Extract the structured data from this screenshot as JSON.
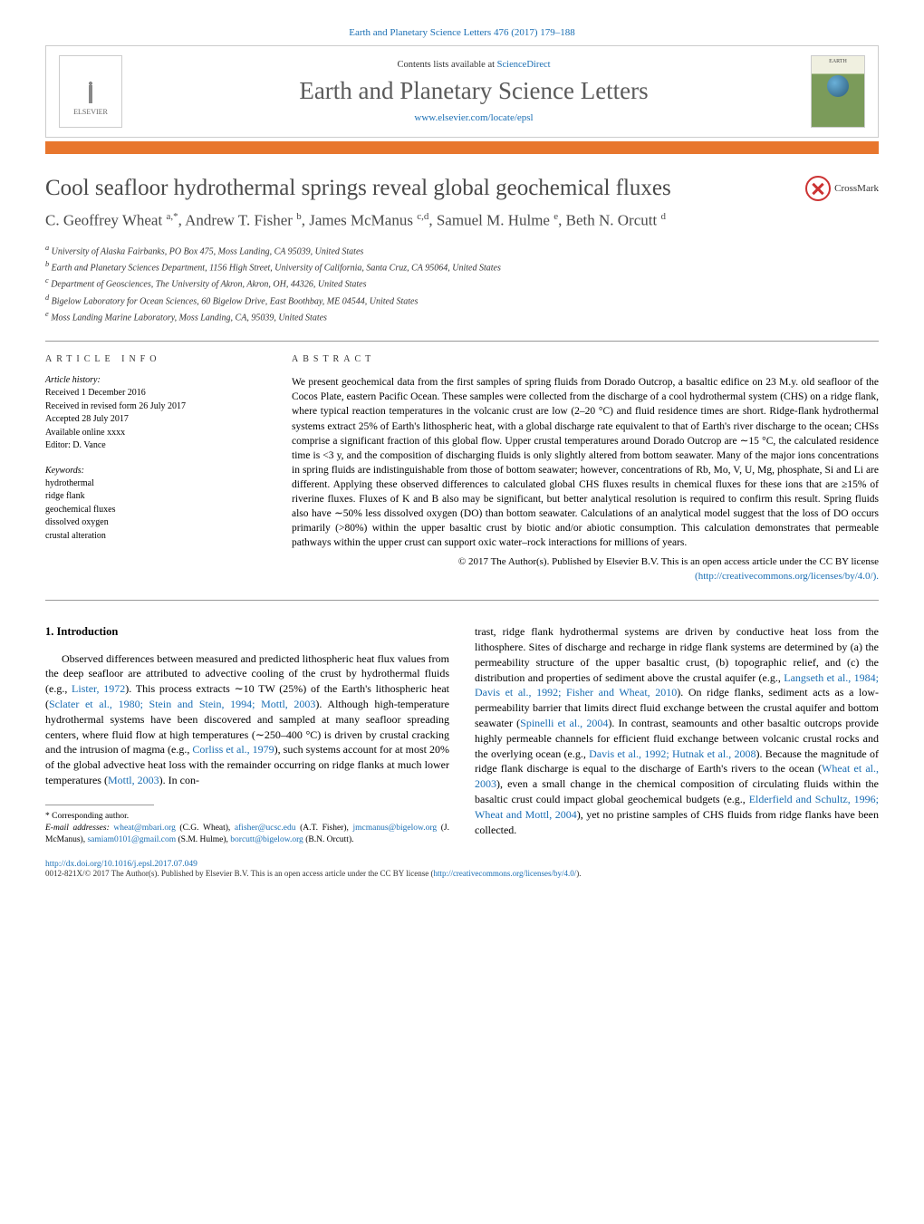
{
  "header": {
    "top_citation": "Earth and Planetary Science Letters 476 (2017) 179–188",
    "contents_prefix": "Contents lists available at ",
    "contents_link": "ScienceDirect",
    "journal_name": "Earth and Planetary Science Letters",
    "journal_url": "www.elsevier.com/locate/epsl",
    "elsevier_label": "ELSEVIER",
    "cover_label": "EARTH"
  },
  "article": {
    "title": "Cool seafloor hydrothermal springs reveal global geochemical fluxes",
    "crossmark": "CrossMark",
    "authors_html": "C. Geoffrey Wheat <sup>a,*</sup>, Andrew T. Fisher <sup>b</sup>, James McManus <sup>c,d</sup>, Samuel M. Hulme <sup>e</sup>, Beth N. Orcutt <sup>d</sup>",
    "affiliations": [
      "a University of Alaska Fairbanks, PO Box 475, Moss Landing, CA 95039, United States",
      "b Earth and Planetary Sciences Department, 1156 High Street, University of California, Santa Cruz, CA 95064, United States",
      "c Department of Geosciences, The University of Akron, Akron, OH, 44326, United States",
      "d Bigelow Laboratory for Ocean Sciences, 60 Bigelow Drive, East Boothbay, ME 04544, United States",
      "e Moss Landing Marine Laboratory, Moss Landing, CA, 95039, United States"
    ]
  },
  "info": {
    "heading": "ARTICLE INFO",
    "history_label": "Article history:",
    "history": [
      "Received 1 December 2016",
      "Received in revised form 26 July 2017",
      "Accepted 28 July 2017",
      "Available online xxxx",
      "Editor: D. Vance"
    ],
    "keywords_label": "Keywords:",
    "keywords": [
      "hydrothermal",
      "ridge flank",
      "geochemical fluxes",
      "dissolved oxygen",
      "crustal alteration"
    ]
  },
  "abstract": {
    "heading": "ABSTRACT",
    "text": "We present geochemical data from the first samples of spring fluids from Dorado Outcrop, a basaltic edifice on 23 M.y. old seafloor of the Cocos Plate, eastern Pacific Ocean. These samples were collected from the discharge of a cool hydrothermal system (CHS) on a ridge flank, where typical reaction temperatures in the volcanic crust are low (2–20 °C) and fluid residence times are short. Ridge-flank hydrothermal systems extract 25% of Earth's lithospheric heat, with a global discharge rate equivalent to that of Earth's river discharge to the ocean; CHSs comprise a significant fraction of this global flow. Upper crustal temperatures around Dorado Outcrop are ∼15 °C, the calculated residence time is <3 y, and the composition of discharging fluids is only slightly altered from bottom seawater. Many of the major ions concentrations in spring fluids are indistinguishable from those of bottom seawater; however, concentrations of Rb, Mo, V, U, Mg, phosphate, Si and Li are different. Applying these observed differences to calculated global CHS fluxes results in chemical fluxes for these ions that are ≥15% of riverine fluxes. Fluxes of K and B also may be significant, but better analytical resolution is required to confirm this result. Spring fluids also have ∼50% less dissolved oxygen (DO) than bottom seawater. Calculations of an analytical model suggest that the loss of DO occurs primarily (>80%) within the upper basaltic crust by biotic and/or abiotic consumption. This calculation demonstrates that permeable pathways within the upper crust can support oxic water–rock interactions for millions of years.",
    "copyright": "© 2017 The Author(s). Published by Elsevier B.V. This is an open access article under the CC BY license",
    "license_url": "(http://creativecommons.org/licenses/by/4.0/)."
  },
  "body": {
    "intro_heading": "1. Introduction",
    "col1_p1a": "Observed differences between measured and predicted lithospheric heat flux values from the deep seafloor are attributed to advective cooling of the crust by hydrothermal fluids (e.g., ",
    "col1_ref1": "Lister, 1972",
    "col1_p1b": "). This process extracts ∼10 TW (25%) of the Earth's lithospheric heat (",
    "col1_ref2": "Sclater et al., 1980; Stein and Stein, 1994; Mottl, 2003",
    "col1_p1c": "). Although high-temperature hydrothermal systems have been discovered and sampled at many seafloor spreading centers, where fluid flow at high temperatures (∼250–400 °C) is driven by crustal cracking and the intrusion of magma (e.g., ",
    "col1_ref3": "Corliss et al., 1979",
    "col1_p1d": "), such systems account for at most 20% of the global advective heat loss with the remainder occurring on ridge flanks at much lower temperatures (",
    "col1_ref4": "Mottl, 2003",
    "col1_p1e": "). In con-",
    "col2_p1a": "trast, ridge flank hydrothermal systems are driven by conductive heat loss from the lithosphere. Sites of discharge and recharge in ridge flank systems are determined by (a) the permeability structure of the upper basaltic crust, (b) topographic relief, and (c) the distribution and properties of sediment above the crustal aquifer (e.g., ",
    "col2_ref1": "Langseth et al., 1984; Davis et al., 1992; Fisher and Wheat, 2010",
    "col2_p1b": "). On ridge flanks, sediment acts as a low-permeability barrier that limits direct fluid exchange between the crustal aquifer and bottom seawater (",
    "col2_ref2": "Spinelli et al., 2004",
    "col2_p1c": "). In contrast, seamounts and other basaltic outcrops provide highly permeable channels for efficient fluid exchange between volcanic crustal rocks and the overlying ocean (e.g., ",
    "col2_ref3": "Davis et al., 1992; Hutnak et al., 2008",
    "col2_p1d": "). Because the magnitude of ridge flank discharge is equal to the discharge of Earth's rivers to the ocean (",
    "col2_ref4": "Wheat et al., 2003",
    "col2_p1e": "), even a small change in the chemical composition of circulating fluids within the basaltic crust could impact global geochemical budgets (e.g., ",
    "col2_ref5": "Elderfield and Schultz, 1996; Wheat and Mottl, 2004",
    "col2_p1f": "), yet no pristine samples of CHS fluids from ridge flanks have been collected."
  },
  "footnotes": {
    "corr_label": "* Corresponding author.",
    "emails_label": "E-mail addresses: ",
    "emails": [
      {
        "addr": "wheat@mbari.org",
        "who": " (C.G. Wheat), "
      },
      {
        "addr": "afisher@ucsc.edu",
        "who": " (A.T. Fisher), "
      },
      {
        "addr": "jmcmanus@bigelow.org",
        "who": " (J. McManus), "
      },
      {
        "addr": "samiam0101@gmail.com",
        "who": " (S.M. Hulme), "
      },
      {
        "addr": "borcutt@bigelow.org",
        "who": " (B.N. Orcutt)."
      }
    ]
  },
  "footer": {
    "doi": "http://dx.doi.org/10.1016/j.epsl.2017.07.049",
    "issn_a": "0012-821X/© 2017 The Author(s). Published by Elsevier B.V. This is an open access article under the CC BY license (",
    "issn_link": "http://creativecommons.org/licenses/by/4.0/",
    "issn_b": ")."
  },
  "colors": {
    "link": "#1a6eb3",
    "orange_bar": "#e8762d",
    "title_gray": "#4a4a4a",
    "border": "#cccccc"
  }
}
